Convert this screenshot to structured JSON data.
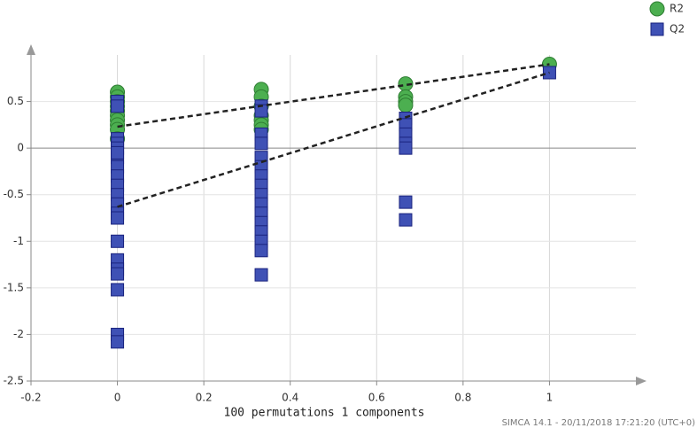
{
  "chart_data": {
    "type": "scatter",
    "x_label": "100 permutations 1 components",
    "footer": "SIMCA 14.1 - 20/11/2018 17:21:20 (UTC+0)",
    "xlim": [
      -0.2,
      1.2
    ],
    "ylim": [
      -2.5,
      1
    ],
    "xticks": [
      -0.2,
      0,
      0.2,
      0.4,
      0.6,
      0.8,
      1
    ],
    "yticks": [
      0.5,
      0,
      -0.5,
      -1,
      -1.5,
      -2,
      -2.5
    ],
    "grid": true,
    "legend": "top-right",
    "series": [
      {
        "name": "R2",
        "color": "#4caf50",
        "marker": "circle",
        "x": [
          0,
          0,
          0,
          0,
          0,
          0,
          0,
          0,
          0,
          0,
          0.333,
          0.333,
          0.333,
          0.333,
          0.333,
          0.333,
          0.333,
          0.667,
          0.667,
          0.667,
          0.667,
          1
        ],
        "values": [
          0.6,
          0.55,
          0.5,
          0.45,
          0.4,
          0.35,
          0.3,
          0.25,
          0.2,
          0.1,
          0.63,
          0.55,
          0.45,
          0.35,
          0.3,
          0.25,
          0.2,
          0.69,
          0.55,
          0.5,
          0.46,
          0.9
        ]
      },
      {
        "name": "Q2",
        "color": "#3f51b5",
        "marker": "square",
        "x": [
          0,
          0,
          0,
          0,
          0,
          0,
          0,
          0,
          0,
          0,
          0,
          0,
          0,
          0,
          0,
          0,
          0,
          0,
          0,
          0,
          0,
          0.333,
          0.333,
          0.333,
          0.333,
          0.333,
          0.333,
          0.333,
          0.333,
          0.333,
          0.333,
          0.333,
          0.333,
          0.333,
          0.333,
          0.333,
          0.333,
          0.667,
          0.667,
          0.667,
          0.667,
          0.667,
          0.667,
          0.667,
          1
        ],
        "values": [
          0.5,
          0.45,
          0.1,
          0.05,
          -0.1,
          -0.2,
          -0.3,
          -0.4,
          -0.5,
          -0.6,
          -0.7,
          -0.75,
          -1.0,
          -1.2,
          -1.3,
          -1.35,
          -1.52,
          -2.0,
          -2.08,
          0.0,
          -0.05,
          0.45,
          0.4,
          0.15,
          0.05,
          -0.1,
          -0.2,
          -0.3,
          -0.4,
          -0.5,
          -0.6,
          -0.7,
          -0.8,
          -0.9,
          -1.0,
          -1.1,
          -1.36,
          0.32,
          0.25,
          0.15,
          0.05,
          0.0,
          -0.58,
          -0.77,
          0.81
        ]
      }
    ],
    "lines": [
      {
        "color": "#222222",
        "x": [
          0,
          1
        ],
        "values": [
          0.23,
          0.9
        ]
      },
      {
        "color": "#222222",
        "x": [
          0,
          1
        ],
        "values": [
          -0.63,
          0.81
        ]
      }
    ]
  }
}
